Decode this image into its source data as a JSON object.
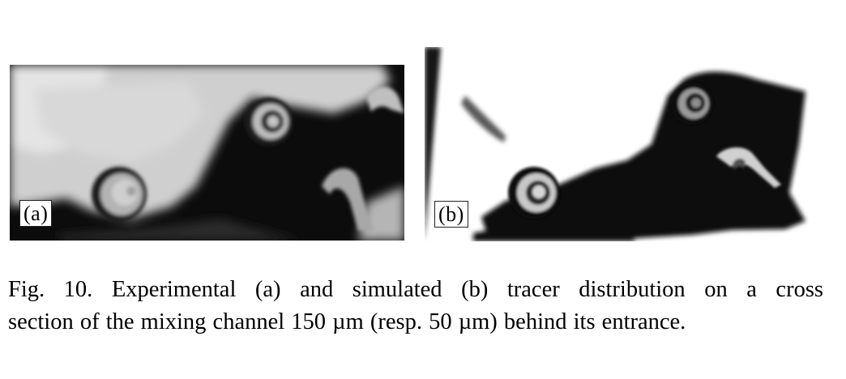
{
  "figure": {
    "panel_a": {
      "label": "(a)",
      "kind": "experimental"
    },
    "panel_b": {
      "label": "(b)",
      "kind": "simulated"
    }
  },
  "caption": {
    "line1": "Fig. 10. Experimental (a) and simulated (b) tracer distribution on a cross",
    "line2": "section of the mixing channel 150 µm (resp. 50 µm) behind its entrance."
  }
}
